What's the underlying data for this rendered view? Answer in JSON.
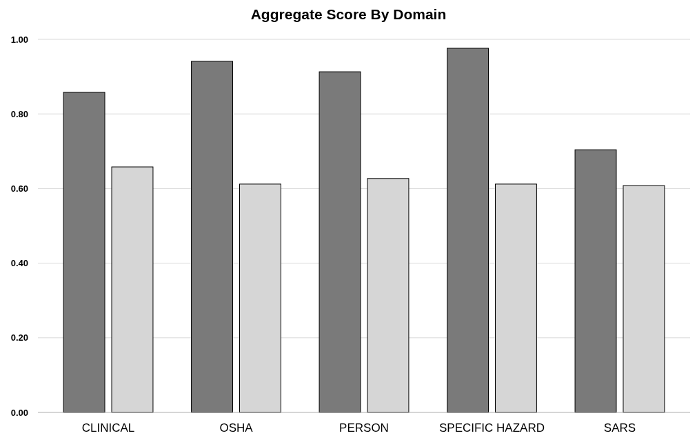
{
  "chart_data": {
    "type": "bar",
    "title": "Aggregate Score By Domain",
    "categories": [
      "CLINICAL",
      "OSHA",
      "PERSON",
      "SPECIFIC HAZARD",
      "SARS"
    ],
    "series": [
      {
        "color": "#7a7a7a",
        "values": [
          0.858,
          0.941,
          0.913,
          0.976,
          0.704
        ]
      },
      {
        "color": "#d6d6d6",
        "values": [
          0.658,
          0.612,
          0.627,
          0.612,
          0.608
        ]
      }
    ],
    "ylim": [
      0,
      1
    ],
    "yticks": [
      {
        "value": 0,
        "label": "0.00"
      },
      {
        "value": 0.2,
        "label": "0.20"
      },
      {
        "value": 0.4,
        "label": "0.40"
      },
      {
        "value": 0.6,
        "label": "0.60"
      },
      {
        "value": 0.8,
        "label": "0.80"
      },
      {
        "value": 1,
        "label": "1.00"
      }
    ],
    "grid": "y"
  }
}
